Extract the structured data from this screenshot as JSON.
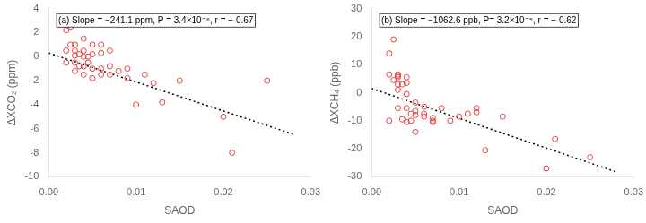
{
  "chart_data": [
    {
      "type": "scatter",
      "xlabel": "SAOD",
      "ylabel": "ΔXCO₂ (ppm)",
      "annotation": "(a) Slope = −241.1 ppm, P = 3.4×10⁻⁶, r = − 0.67",
      "xlim": [
        0.0,
        0.03
      ],
      "xticks": [
        {
          "value": 0.0,
          "label": "0.00"
        },
        {
          "value": 0.01,
          "label": "0.01"
        },
        {
          "value": 0.02,
          "label": "0.02"
        },
        {
          "value": 0.03,
          "label": "0.03"
        }
      ],
      "ylim": [
        -10,
        4
      ],
      "yticks": [
        -10,
        -8,
        -6,
        -4,
        -2,
        0,
        2,
        4
      ],
      "grid": false,
      "series": [
        {
          "type": "scatter",
          "color": "#E84040",
          "marker": "open circle",
          "x": [
            0.002,
            0.002,
            0.002,
            0.0025,
            0.0025,
            0.003,
            0.003,
            0.003,
            0.003,
            0.003,
            0.0035,
            0.0035,
            0.004,
            0.004,
            0.004,
            0.004,
            0.004,
            0.0045,
            0.0045,
            0.005,
            0.005,
            0.005,
            0.005,
            0.006,
            0.006,
            0.006,
            0.006,
            0.007,
            0.007,
            0.007,
            0.008,
            0.009,
            0.009,
            0.01,
            0.011,
            0.012,
            0.013,
            0.015,
            0.02,
            0.021,
            0.025
          ],
          "values": [
            2.2,
            0.5,
            -0.5,
            2.5,
            1.0,
            1.0,
            0.5,
            0.1,
            -0.5,
            -1.2,
            0.2,
            -0.8,
            1.5,
            0.5,
            0.0,
            -0.8,
            -1.5,
            0.0,
            -0.5,
            1.0,
            0.2,
            -1.0,
            -1.8,
            1.0,
            0.3,
            -1.0,
            -1.5,
            0.5,
            -0.8,
            -1.5,
            -1.2,
            -1.0,
            -1.8,
            -4.0,
            -1.5,
            -2.2,
            -3.8,
            -2.0,
            -5.0,
            -8.0,
            -2.0
          ]
        },
        {
          "type": "line",
          "color": "black",
          "line_style": "dotted",
          "x": [
            0.0,
            0.028
          ],
          "values": [
            0.3,
            -6.4508
          ]
        }
      ]
    },
    {
      "type": "scatter",
      "xlabel": "SAOD",
      "ylabel": "ΔXCH₄ (ppb)",
      "annotation": "(b) Slope = −1062.6 ppb, P= 3.2×10⁻⁵, r = − 0.62",
      "xlim": [
        0.0,
        0.03
      ],
      "xticks": [
        {
          "value": 0.0,
          "label": "0.00"
        },
        {
          "value": 0.01,
          "label": "0.01"
        },
        {
          "value": 0.02,
          "label": "0.02"
        },
        {
          "value": 0.03,
          "label": "0.03"
        }
      ],
      "ylim": [
        -30,
        30
      ],
      "yticks": [
        -30,
        -20,
        -10,
        0,
        10,
        20,
        30
      ],
      "grid": false,
      "series": [
        {
          "type": "scatter",
          "color": "#E84040",
          "marker": "open circle",
          "x": [
            0.002,
            0.002,
            0.002,
            0.0025,
            0.0025,
            0.003,
            0.003,
            0.003,
            0.003,
            0.003,
            0.003,
            0.0035,
            0.0035,
            0.004,
            0.004,
            0.004,
            0.004,
            0.004,
            0.0045,
            0.0045,
            0.005,
            0.005,
            0.005,
            0.005,
            0.006,
            0.006,
            0.006,
            0.007,
            0.007,
            0.007,
            0.008,
            0.009,
            0.01,
            0.011,
            0.012,
            0.012,
            0.013,
            0.015,
            0.02,
            0.021,
            0.025
          ],
          "values": [
            14.0,
            6.5,
            -10.0,
            19.0,
            4.5,
            6.5,
            6.0,
            5.5,
            3.0,
            1.0,
            -5.5,
            3.0,
            -9.5,
            5.5,
            3.5,
            -0.5,
            -5.5,
            -10.5,
            -7.5,
            -10.0,
            -3.5,
            -6.5,
            -8.0,
            -14.0,
            -5.0,
            -7.5,
            -8.5,
            -9.0,
            -10.0,
            -10.5,
            -5.5,
            -10.0,
            -8.5,
            -7.5,
            -5.5,
            -7.0,
            -20.5,
            -8.5,
            -27.0,
            -16.5,
            -23.0
          ]
        },
        {
          "type": "line",
          "color": "black",
          "line_style": "dotted",
          "x": [
            0.0,
            0.028
          ],
          "values": [
            1.5,
            -28.2528
          ]
        }
      ]
    }
  ]
}
